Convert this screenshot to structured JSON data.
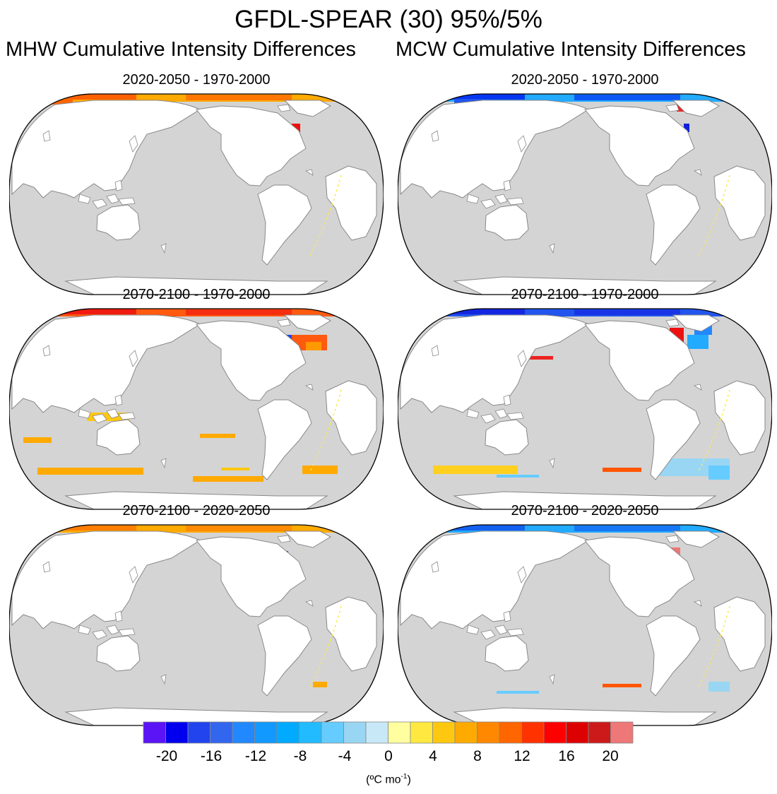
{
  "title": "GFDL-SPEAR (30) 95%/5%",
  "column_titles": [
    "MHW Cumulative Intensity Differences",
    "MCW Cumulative Intensity Differences"
  ],
  "panels": [
    {
      "title": "2020-2050 - 1970-2000",
      "type": "MHW",
      "arctic": "#ffaa00",
      "arctic_edge": "#ff5500",
      "features": [
        "red_patch_atlantic"
      ]
    },
    {
      "title": "2020-2050 - 1970-2000",
      "type": "MCW",
      "arctic": "#22aaff",
      "arctic_edge": "#0022ee",
      "features": [
        "blue_patch_atlantic"
      ]
    },
    {
      "title": "2070-2100 - 1970-2000",
      "type": "MHW",
      "arctic": "#ff5a10",
      "arctic_edge": "#ee1010",
      "features": [
        "atlantic_hot",
        "southern_streaks"
      ]
    },
    {
      "title": "2070-2100 - 1970-2000",
      "type": "MCW",
      "arctic": "#2255ee",
      "arctic_edge": "#1020dd",
      "features": [
        "atlantic_mixed",
        "southern_blue"
      ]
    },
    {
      "title": "2070-2100 - 2020-2050",
      "type": "MHW",
      "arctic": "#ffaa00",
      "arctic_edge": "#ff7700",
      "features": [
        "small_blue"
      ]
    },
    {
      "title": "2070-2100 - 2020-2050",
      "type": "MCW",
      "arctic": "#22aaff",
      "arctic_edge": "#1155ee",
      "features": [
        "atlantic_red",
        "southern_blue_light"
      ]
    }
  ],
  "colorbar": {
    "colors": [
      "#5a14f5",
      "#0000ee",
      "#2244ee",
      "#3366ee",
      "#2288ff",
      "#1199ff",
      "#00aaff",
      "#22bbff",
      "#66ccff",
      "#99d6f3",
      "#c8e8f8",
      "#ffffa0",
      "#ffe840",
      "#ffc810",
      "#ffaa00",
      "#ff8800",
      "#ff6600",
      "#ff3300",
      "#ff0000",
      "#dd0000",
      "#cc1a1a",
      "#ee7777"
    ],
    "ticks": [
      "-20",
      "-16",
      "-12",
      "-8",
      "-4",
      "0",
      "4",
      "8",
      "12",
      "16",
      "20"
    ],
    "units_main": "(ºC mo",
    "units_exp": "-1",
    "units_close": ")"
  }
}
